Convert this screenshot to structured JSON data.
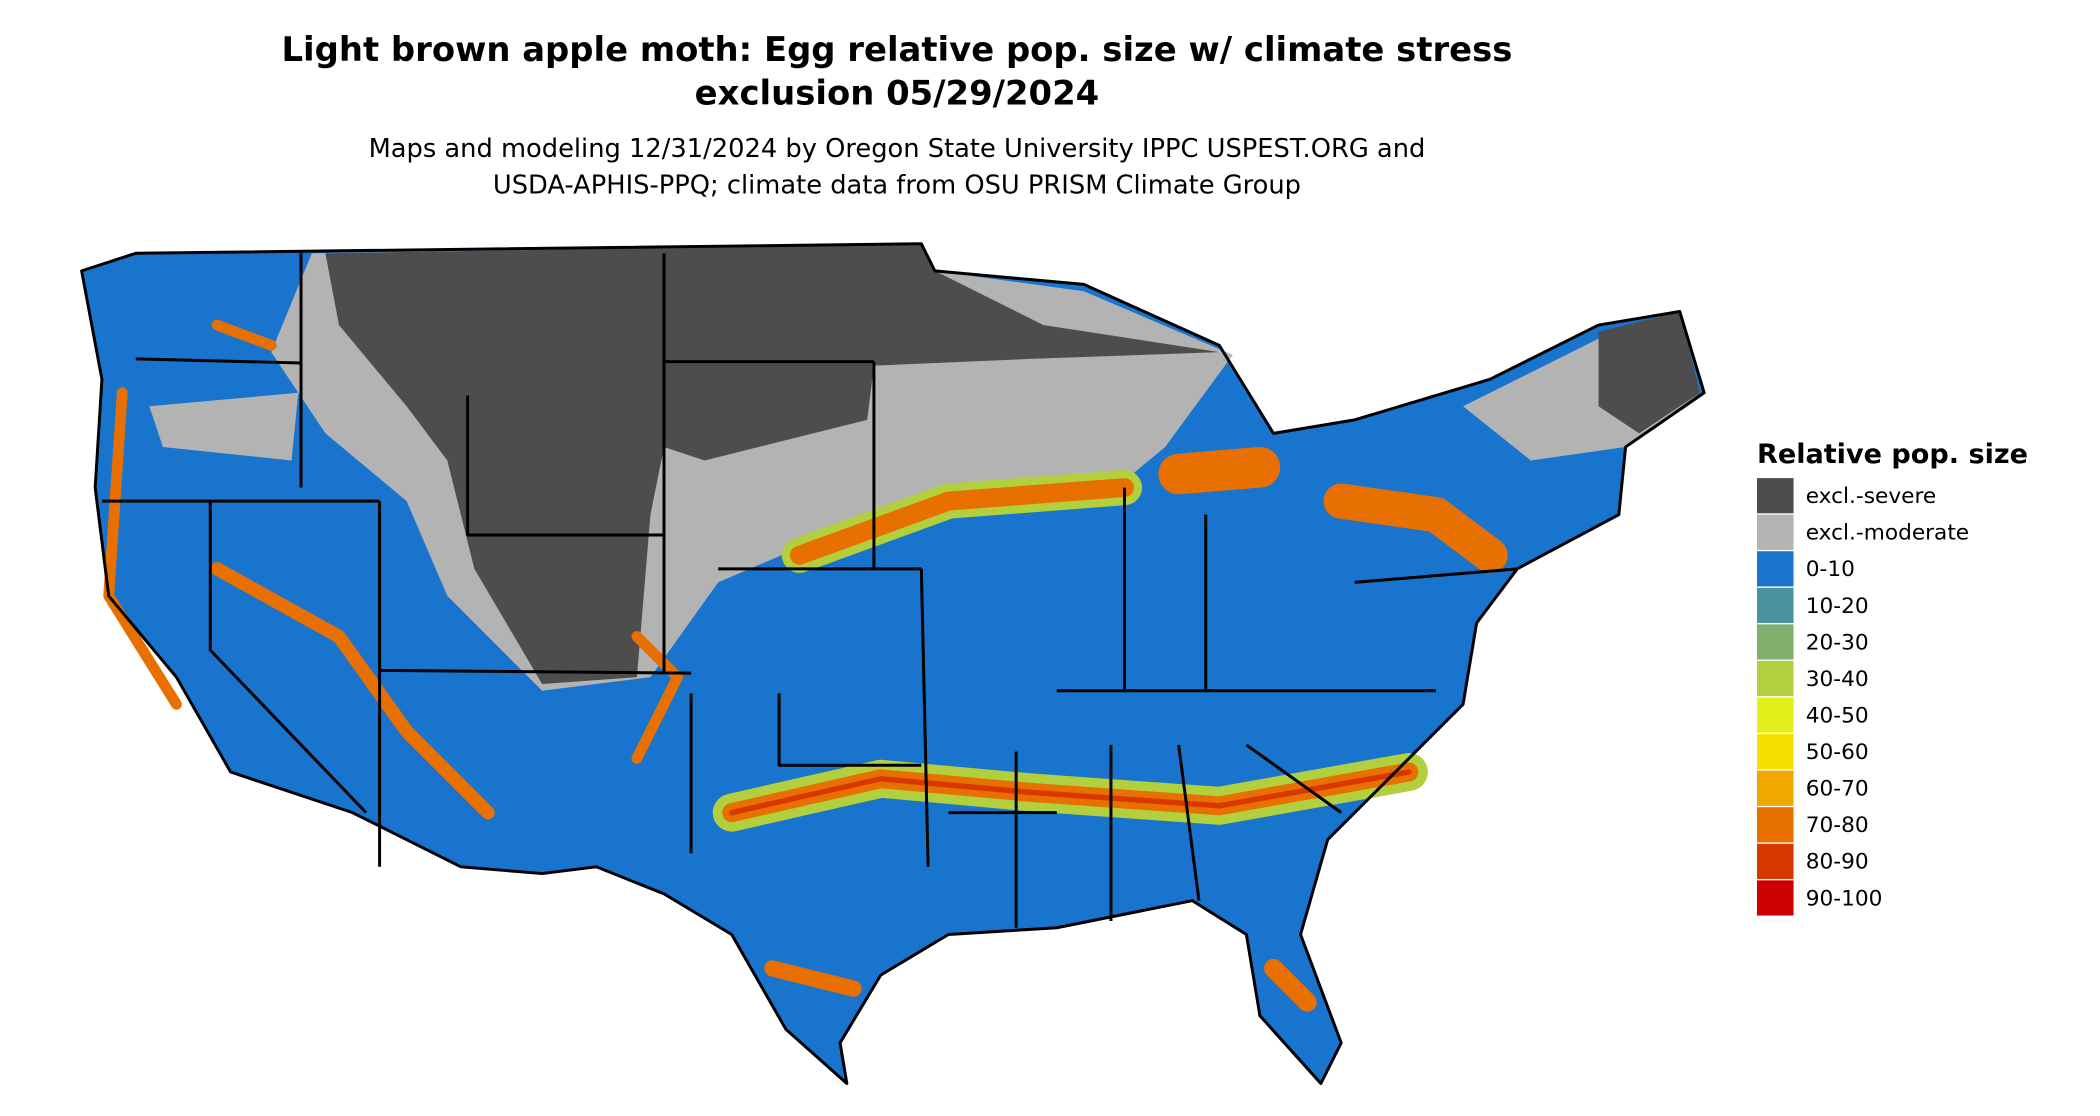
{
  "header": {
    "title": [
      "Light brown apple moth: Egg relative pop. size w/ climate stress",
      "exclusion 05/29/2024"
    ],
    "subtitle": [
      "Maps and modeling 12/31/2024 by Oregon State University IPPC USPEST.ORG and",
      "USDA-APHIS-PPQ; climate data from OSU PRISM Climate Group"
    ]
  },
  "legend": {
    "title": "Relative pop. size",
    "items": [
      {
        "label": "excl.-severe",
        "color": "#4d4d4d"
      },
      {
        "label": "excl.-moderate",
        "color": "#b3b3b3"
      },
      {
        "label": "0-10",
        "color": "#1874cd"
      },
      {
        "label": "10-20",
        "color": "#4a92a0"
      },
      {
        "label": "20-30",
        "color": "#7fb06e"
      },
      {
        "label": "30-40",
        "color": "#b2d03e"
      },
      {
        "label": "40-50",
        "color": "#e4f01c"
      },
      {
        "label": "50-60",
        "color": "#f7e000"
      },
      {
        "label": "60-70",
        "color": "#f0a800"
      },
      {
        "label": "70-80",
        "color": "#e87000"
      },
      {
        "label": "80-90",
        "color": "#d83800"
      },
      {
        "label": "90-100",
        "color": "#cc0000"
      }
    ]
  }
}
